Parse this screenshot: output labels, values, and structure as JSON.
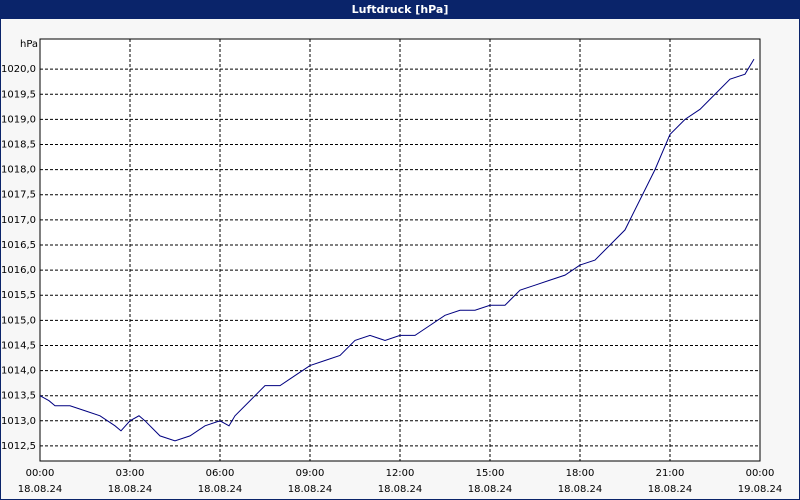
{
  "chart_data": {
    "type": "line",
    "title": "Luftdruck [hPa]",
    "ylabel": "hPa",
    "x": [
      0,
      0.3,
      0.5,
      1.0,
      1.5,
      2.0,
      2.5,
      2.7,
      3.0,
      3.3,
      3.5,
      4.0,
      4.5,
      5.0,
      5.5,
      6.0,
      6.3,
      6.5,
      7.0,
      7.5,
      8.0,
      8.5,
      9.0,
      9.5,
      10.0,
      10.5,
      11.0,
      11.5,
      12.0,
      12.5,
      13.0,
      13.5,
      14.0,
      14.5,
      15.0,
      15.5,
      16.0,
      16.5,
      17.0,
      17.5,
      18.0,
      18.5,
      19.0,
      19.5,
      20.0,
      20.5,
      21.0,
      21.5,
      22.0,
      22.5,
      23.0,
      23.5,
      23.8
    ],
    "series": [
      {
        "name": "Luftdruck",
        "color": "#000080",
        "values": [
          1013.5,
          1013.4,
          1013.3,
          1013.3,
          1013.2,
          1013.1,
          1012.9,
          1012.8,
          1013.0,
          1013.1,
          1013.0,
          1012.7,
          1012.6,
          1012.7,
          1012.9,
          1013.0,
          1012.9,
          1013.1,
          1013.4,
          1013.7,
          1013.7,
          1013.9,
          1014.1,
          1014.2,
          1014.3,
          1014.6,
          1014.7,
          1014.6,
          1014.7,
          1014.7,
          1014.9,
          1015.1,
          1015.2,
          1015.2,
          1015.3,
          1015.3,
          1015.6,
          1015.7,
          1015.8,
          1015.9,
          1016.1,
          1016.2,
          1016.5,
          1016.8,
          1017.4,
          1018.0,
          1018.7,
          1019.0,
          1019.2,
          1019.5,
          1019.8,
          1019.9,
          1020.2
        ]
      }
    ],
    "xlim": [
      0,
      24
    ],
    "xticks": [
      {
        "value": 0,
        "label": "00:00"
      },
      {
        "value": 3,
        "label": "03:00"
      },
      {
        "value": 6,
        "label": "06:00"
      },
      {
        "value": 9,
        "label": "09:00"
      },
      {
        "value": 12,
        "label": "12:00"
      },
      {
        "value": 15,
        "label": "15:00"
      },
      {
        "value": 18,
        "label": "18:00"
      },
      {
        "value": 21,
        "label": "21:00"
      },
      {
        "value": 24,
        "label": "00:00"
      }
    ],
    "xtick_dates": [
      "18.08.24",
      "18.08.24",
      "18.08.24",
      "18.08.24",
      "18.08.24",
      "18.08.24",
      "18.08.24",
      "18.08.24",
      "19.08.24"
    ],
    "ylim": [
      1012.2,
      1020.6
    ],
    "yticks": [
      {
        "value": 1012.5,
        "label": "1012,5"
      },
      {
        "value": 1013,
        "label": "1013,0"
      },
      {
        "value": 1013.5,
        "label": "1013,5"
      },
      {
        "value": 1014,
        "label": "1014,0"
      },
      {
        "value": 1014.5,
        "label": "1014,5"
      },
      {
        "value": 1015,
        "label": "1015,0"
      },
      {
        "value": 1015.5,
        "label": "1015,5"
      },
      {
        "value": 1016,
        "label": "1016,0"
      },
      {
        "value": 1016.5,
        "label": "1016,5"
      },
      {
        "value": 1017,
        "label": "1017,0"
      },
      {
        "value": 1017.5,
        "label": "1017,5"
      },
      {
        "value": 1018,
        "label": "1018,0"
      },
      {
        "value": 1018.5,
        "label": "1018,5"
      },
      {
        "value": 1019,
        "label": "1019,0"
      },
      {
        "value": 1019.5,
        "label": "1019,5"
      },
      {
        "value": 1020,
        "label": "1020,0"
      }
    ],
    "grid": true
  }
}
